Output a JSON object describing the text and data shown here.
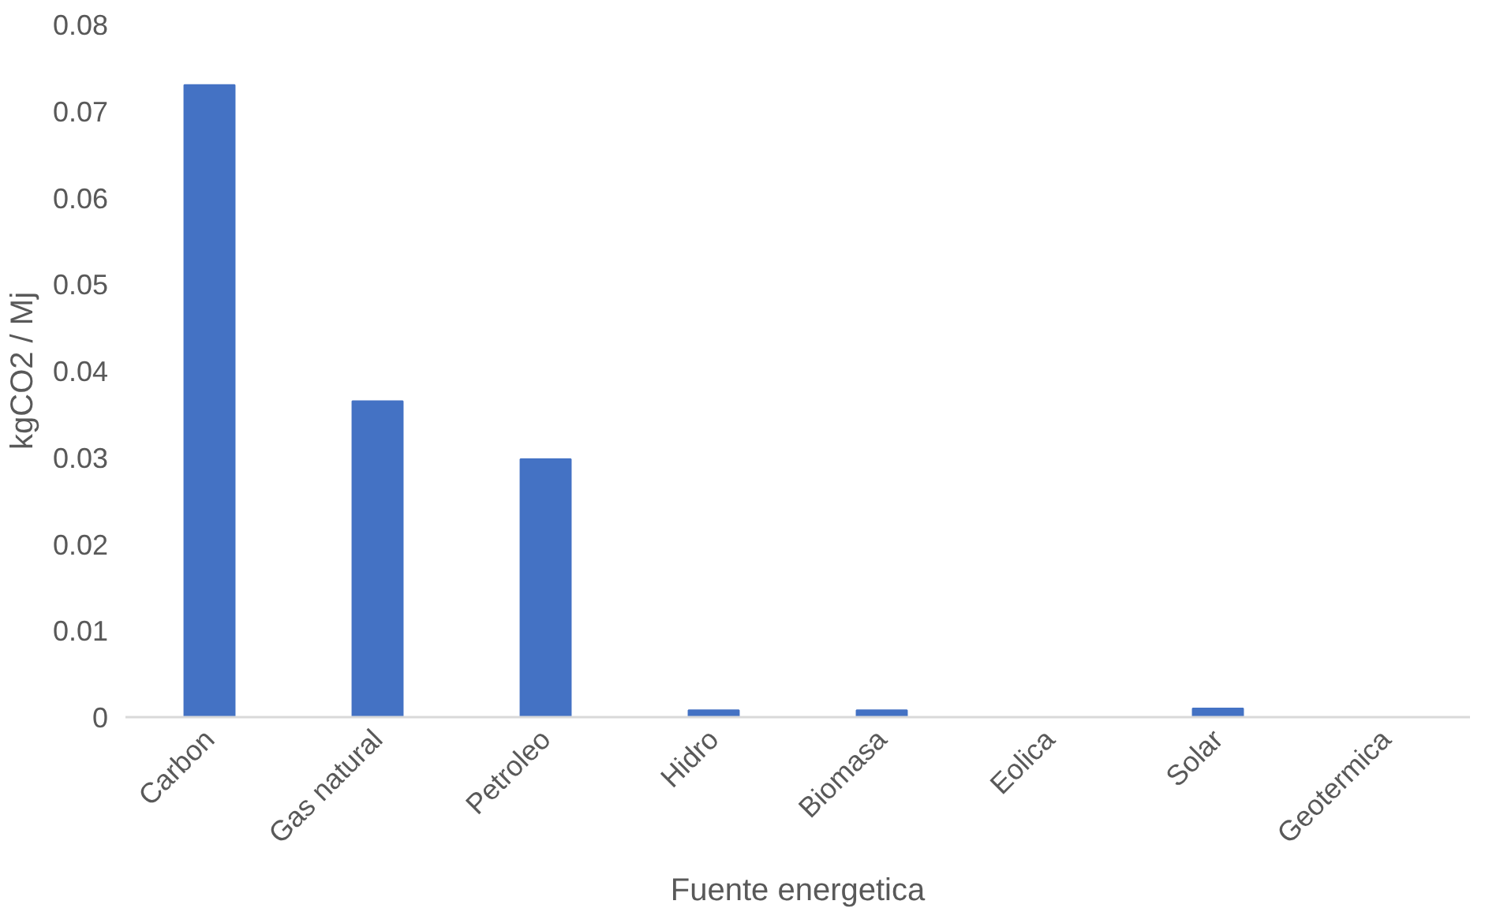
{
  "chart_data": {
    "type": "bar",
    "xlabel": "Fuente energetica",
    "ylabel": "kgCO2 / Mj",
    "categories": [
      "Carbon",
      "Gas natural",
      "Petroleo",
      "Hidro",
      "Biomasa",
      "Eolica",
      "Solar",
      "Geotermica"
    ],
    "values": [
      0.073,
      0.0365,
      0.0298,
      0.0008,
      0.0008,
      0,
      0.001,
      0
    ],
    "color": "#4472c4",
    "ylim": [
      0,
      0.08
    ],
    "yticks": [
      {
        "value": 0,
        "label": "0"
      },
      0.01,
      0.02,
      0.03,
      0.04,
      0.05,
      0.06,
      0.07,
      0.08
    ],
    "grid": false
  }
}
